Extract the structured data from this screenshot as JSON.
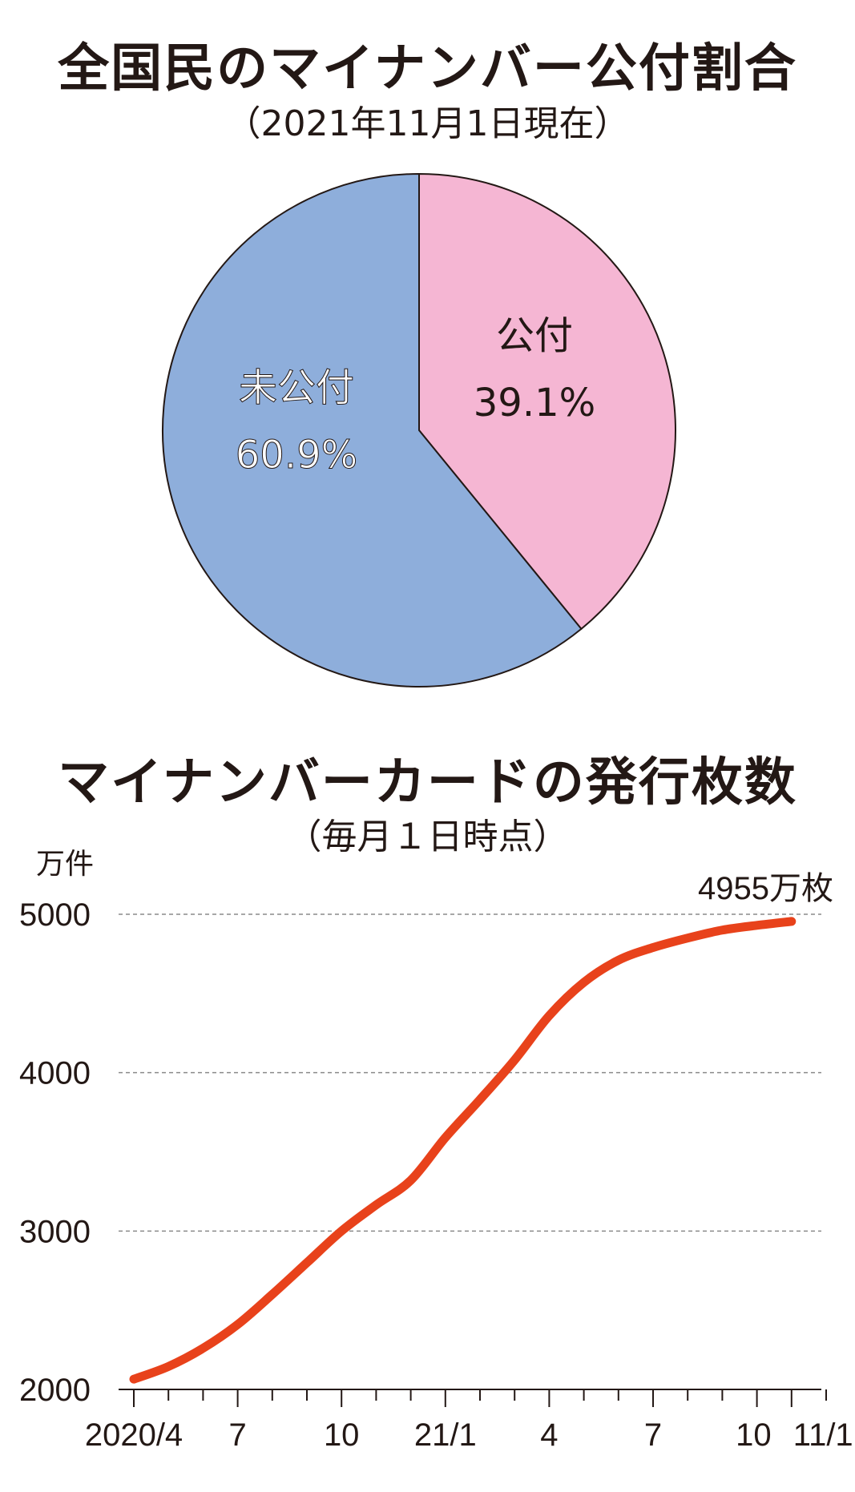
{
  "chart_data": [
    {
      "type": "pie",
      "title": "全国民のマイナンバー公付割合",
      "subtitle": "（2021年11月1日現在）",
      "slices": [
        {
          "label": "公付",
          "value": 39.1,
          "value_label": "39.1%",
          "color": "#f5b6d3"
        },
        {
          "label": "未公付",
          "value": 60.9,
          "value_label": "60.9%",
          "color": "#8eaedb"
        }
      ],
      "start": "12 o'clock",
      "direction": "clockwise"
    },
    {
      "type": "line",
      "title": "マイナンバーカードの発行枚数",
      "subtitle": "（毎月１日時点）",
      "ylabel": "万件",
      "ylim": [
        2000,
        5000
      ],
      "yticks": [
        "2000",
        "3000",
        "4000",
        "5000"
      ],
      "grid": "dashed-horizontal",
      "x": [
        "2020/4",
        "2020/5",
        "2020/6",
        "2020/7",
        "2020/8",
        "2020/9",
        "2020/10",
        "2020/11",
        "2020/12",
        "2021/1",
        "2021/2",
        "2021/3",
        "2021/4",
        "2021/5",
        "2021/6",
        "2021/7",
        "2021/8",
        "2021/9",
        "2021/10",
        "2021/11"
      ],
      "xtick_labels": [
        {
          "index": 0,
          "text": "2020/4"
        },
        {
          "index": 3,
          "text": "7"
        },
        {
          "index": 6,
          "text": "10"
        },
        {
          "index": 9,
          "text": "21/1"
        },
        {
          "index": 12,
          "text": "4"
        },
        {
          "index": 15,
          "text": "7"
        },
        {
          "index": 18,
          "text": "10"
        },
        {
          "index": 19,
          "text": "11/1"
        }
      ],
      "series": [
        {
          "color": "#e8421b",
          "values": [
            2065,
            2145,
            2260,
            2410,
            2600,
            2800,
            3000,
            3165,
            3320,
            3590,
            3830,
            4080,
            4360,
            4570,
            4710,
            4790,
            4850,
            4900,
            4930,
            4955
          ]
        }
      ],
      "annotation": {
        "index": 19,
        "text": "4955万枚"
      }
    }
  ]
}
